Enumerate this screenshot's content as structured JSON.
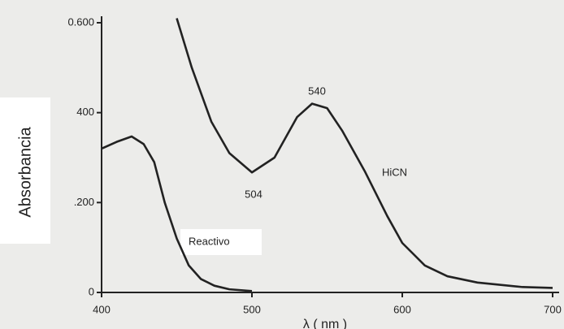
{
  "chart_data": {
    "type": "line",
    "x_label": "λ ( nm )",
    "y_label": "Absorbancia",
    "xlim": [
      400,
      700
    ],
    "xticks": [
      400,
      500,
      600,
      700
    ],
    "ylim": [
      0,
      0.6
    ],
    "yticks": [
      0,
      {
        "value": 0.2,
        "label": ".200"
      },
      {
        "value": 0.4,
        "label": "400"
      },
      {
        "value": 0.6,
        "label": "0.600"
      }
    ],
    "annotations": [
      "540",
      "504"
    ],
    "series": [
      {
        "name": "HiCN",
        "color": "#222222",
        "x": [
          450,
          460,
          473,
          485,
          500,
          515,
          530,
          540,
          550,
          560,
          575,
          590,
          600,
          615,
          630,
          650,
          680,
          700
        ],
        "values": [
          0.61,
          0.5,
          0.38,
          0.31,
          0.267,
          0.3,
          0.39,
          0.42,
          0.41,
          0.36,
          0.27,
          0.17,
          0.11,
          0.06,
          0.036,
          0.022,
          0.012,
          0.01
        ]
      },
      {
        "name": "Reactivo",
        "color": "#222222",
        "x": [
          400,
          410,
          420,
          428,
          435,
          442,
          450,
          458,
          466,
          475,
          485,
          500
        ],
        "values": [
          0.32,
          0.335,
          0.347,
          0.33,
          0.29,
          0.2,
          0.12,
          0.06,
          0.03,
          0.015,
          0.007,
          0.003
        ]
      }
    ]
  }
}
